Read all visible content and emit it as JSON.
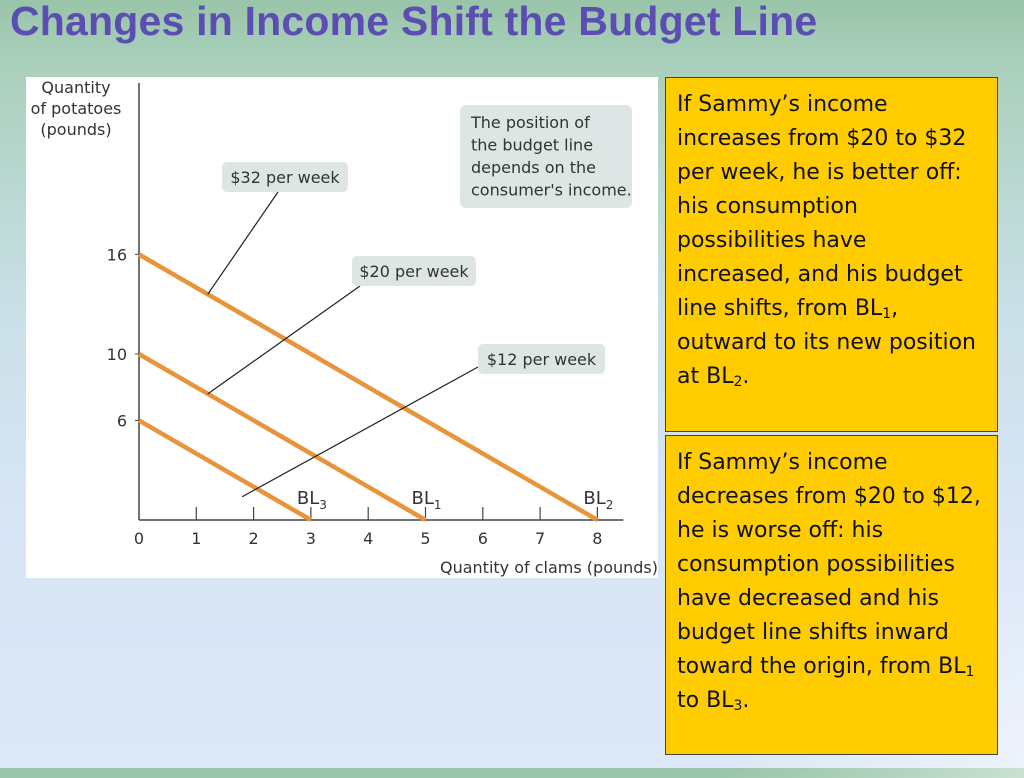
{
  "title": "Changes in Income Shift the Budget Line",
  "notes": {
    "top": {
      "text": "If Sammy’s income increases from $20 to $32 per week, he is better off: his consumption possibilities have increased, and his budget line shifts, from",
      "p1": "BL",
      "s1": "1",
      "mid": ", outward to its new position at BL",
      "s2": "2",
      "end": "."
    },
    "bottom": {
      "text": "If Sammy’s income decreases from $20 to $12, he is worse off: his consumption possibilities have decreased and his budget line shifts inward toward the origin, from",
      "p1": "BL",
      "s1": "1",
      "mid": " to BL",
      "s2": "3",
      "end": "."
    }
  },
  "chart_data": {
    "type": "line",
    "ylabel": [
      "Quantity",
      "of potatoes",
      "(pounds)"
    ],
    "xlabel": "Quantity of clams (pounds)",
    "xlim": [
      0,
      8
    ],
    "ylim": [
      0,
      16
    ],
    "x_ticks": [
      0,
      1,
      2,
      3,
      4,
      5,
      6,
      7,
      8
    ],
    "y_ticks": [
      6,
      10,
      16
    ],
    "line_color": "#e8943a",
    "series": [
      {
        "label": "BL",
        "sub": "3",
        "income": "$12 per week",
        "points": [
          [
            0,
            6
          ],
          [
            3,
            0
          ]
        ]
      },
      {
        "label": "BL",
        "sub": "1",
        "income": "$20 per week",
        "points": [
          [
            0,
            10
          ],
          [
            5,
            0
          ]
        ]
      },
      {
        "label": "BL",
        "sub": "2",
        "income": "$32 per week",
        "points": [
          [
            0,
            16
          ],
          [
            8,
            0
          ]
        ]
      }
    ],
    "annotation": [
      "The position of",
      "the budget line",
      "depends on the",
      "consumer's income."
    ],
    "callout_color": "#dde6e4"
  }
}
